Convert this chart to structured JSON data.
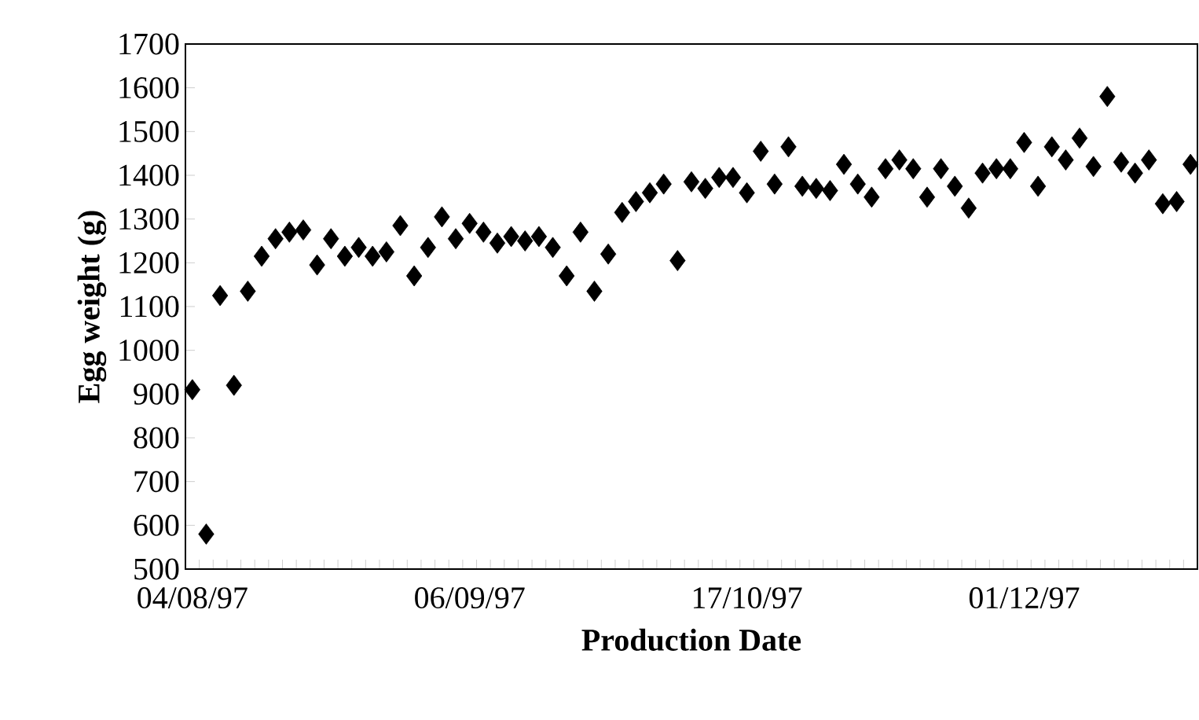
{
  "chart_data": {
    "type": "scatter",
    "xlabel": "Production Date",
    "ylabel": "Egg weight (g)",
    "categories": [
      "04/08/97",
      null,
      null,
      null,
      null,
      null,
      null,
      null,
      null,
      null,
      null,
      null,
      null,
      null,
      null,
      null,
      null,
      null,
      null,
      null,
      "06/09/97",
      null,
      null,
      null,
      null,
      null,
      null,
      null,
      null,
      null,
      null,
      null,
      null,
      null,
      null,
      null,
      null,
      null,
      null,
      null,
      "17/10/97",
      null,
      null,
      null,
      null,
      null,
      null,
      null,
      null,
      null,
      null,
      null,
      null,
      null,
      null,
      null,
      null,
      null,
      null,
      null,
      "01/12/97",
      null,
      null,
      null,
      null,
      null,
      null,
      null,
      null,
      null,
      null,
      null,
      null
    ],
    "values": [
      910,
      580,
      1125,
      920,
      1135,
      1215,
      1255,
      1270,
      1275,
      1195,
      1255,
      1215,
      1235,
      1215,
      1225,
      1285,
      1170,
      1235,
      1305,
      1255,
      1290,
      1270,
      1245,
      1260,
      1250,
      1260,
      1235,
      1170,
      1270,
      1135,
      1220,
      1315,
      1340,
      1360,
      1380,
      1205,
      1385,
      1370,
      1395,
      1395,
      1360,
      1455,
      1380,
      1465,
      1375,
      1370,
      1365,
      1425,
      1380,
      1350,
      1415,
      1435,
      1415,
      1350,
      1415,
      1375,
      1325,
      1405,
      1415,
      1415,
      1475,
      1375,
      1465,
      1435,
      1485,
      1420,
      1580,
      1430,
      1405,
      1435,
      1335,
      1340,
      1425
    ],
    "color": "#000000",
    "marker": "diamond",
    "ylim": [
      500,
      1700
    ],
    "yticks": [
      500,
      600,
      700,
      800,
      900,
      1000,
      1100,
      1200,
      1300,
      1400,
      1500,
      1600,
      1700
    ]
  }
}
